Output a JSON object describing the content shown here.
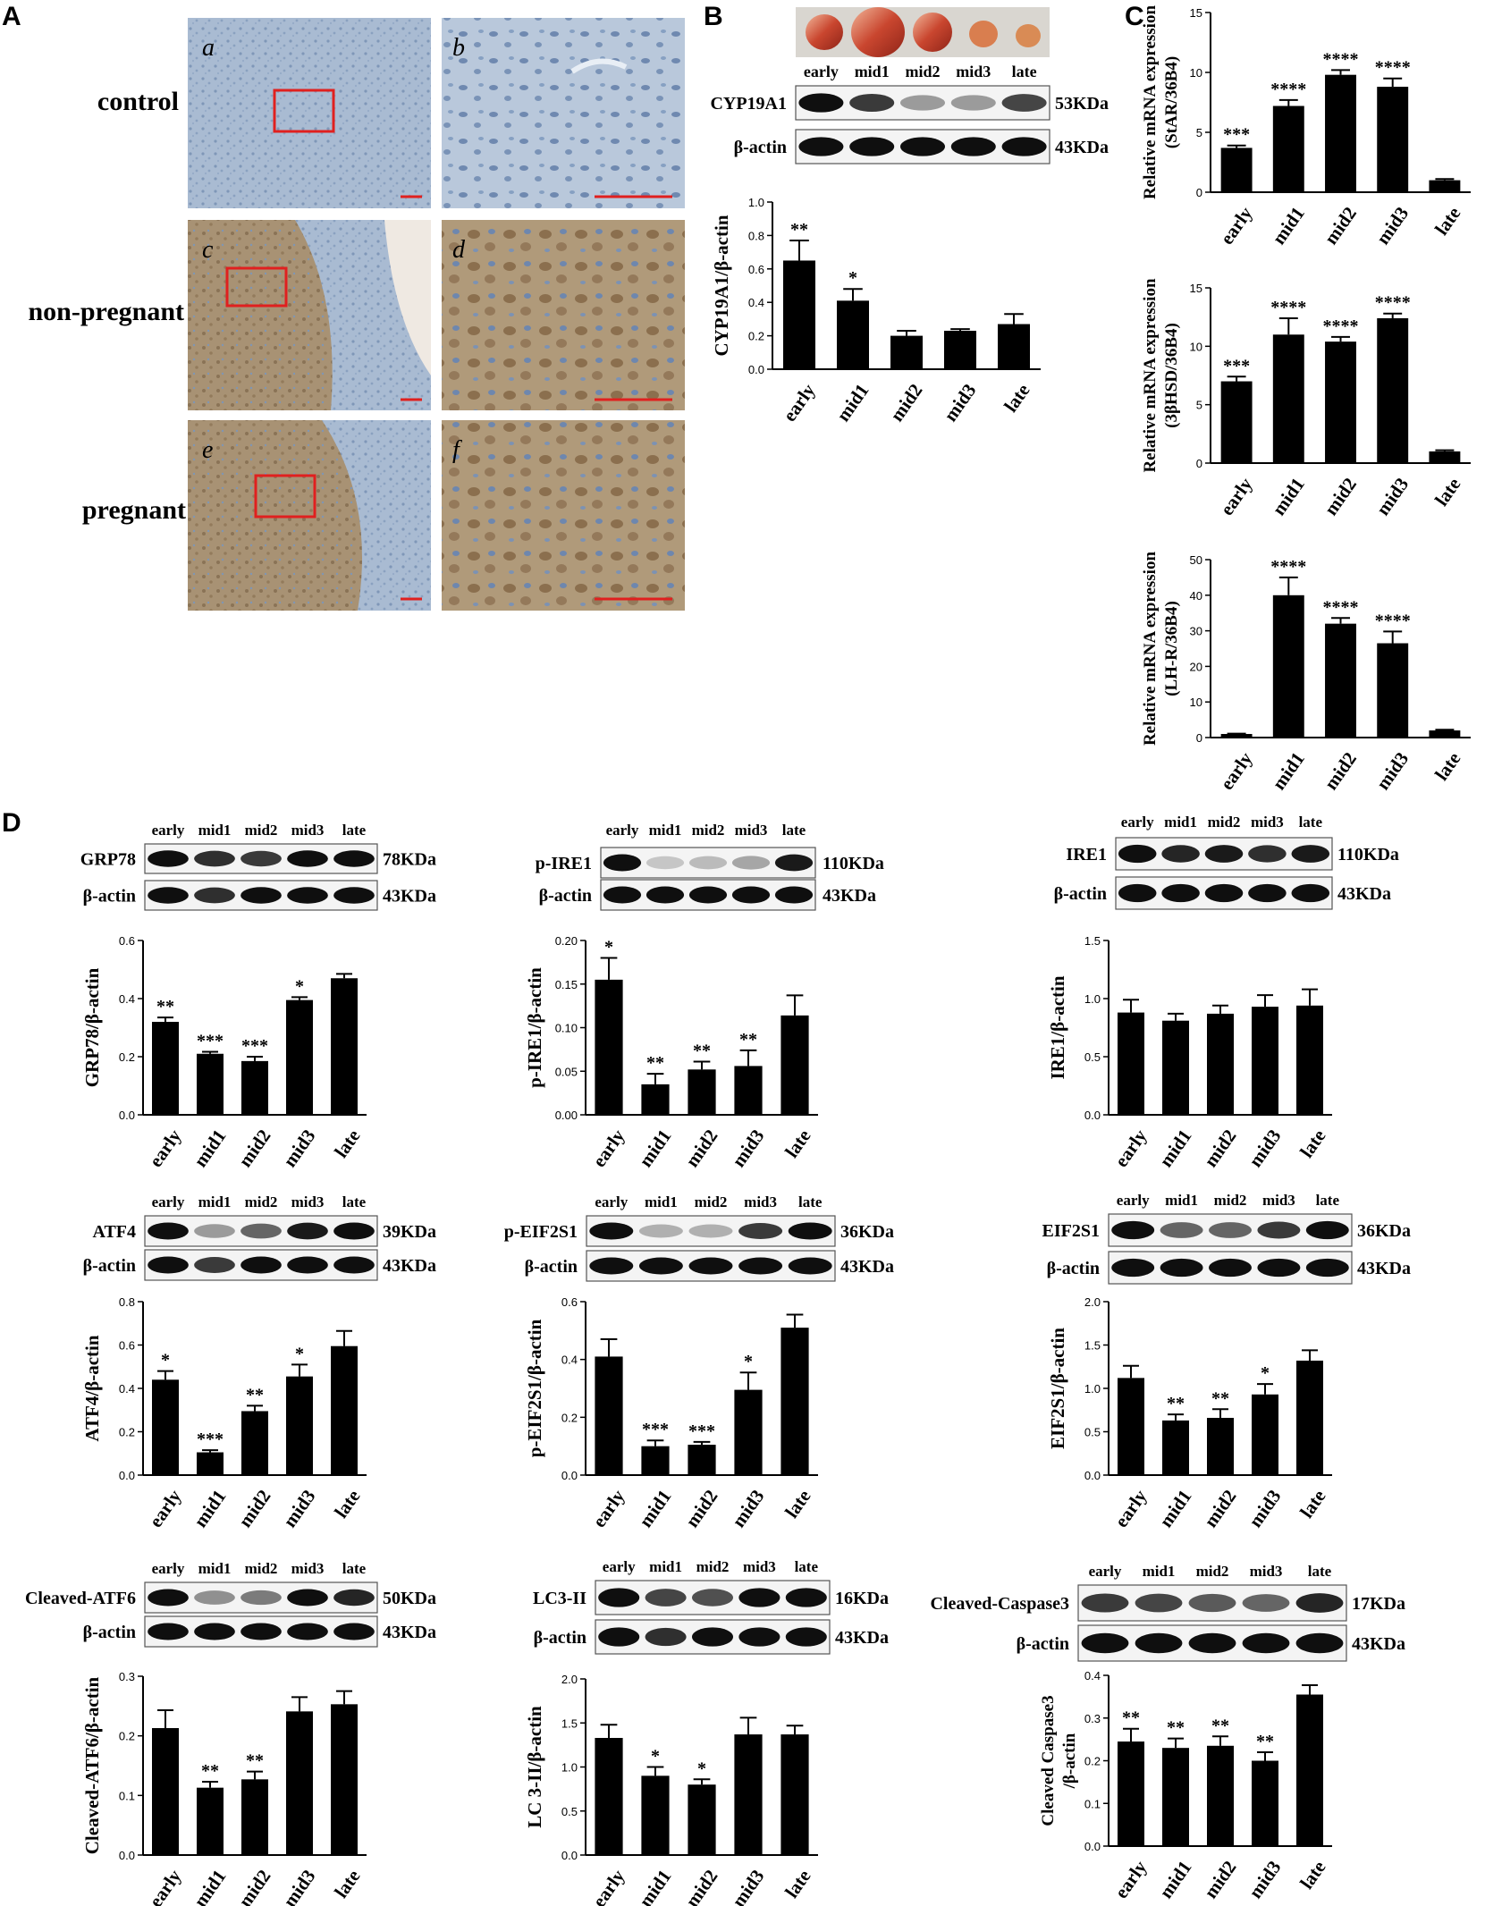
{
  "panels": {
    "A": "A",
    "B": "B",
    "C": "C",
    "D": "D"
  },
  "panelA": {
    "rows": [
      "control",
      "non-pregnant",
      "pregnant"
    ],
    "tiles": [
      "a",
      "b",
      "c",
      "d",
      "e",
      "f"
    ]
  },
  "colors": {
    "bar": "#000000",
    "box": "#e0201f",
    "stain_blue": "#9fb3cc",
    "stain_brown": "#a58e6c"
  },
  "blots": {
    "B": {
      "lanes": [
        "early",
        "mid1",
        "mid2",
        "mid3",
        "late"
      ],
      "rows": [
        {
          "name": "CYP19A1",
          "size": "53KDa"
        },
        {
          "name": "β-actin",
          "size": "43KDa"
        }
      ]
    },
    "D1": {
      "lanes": [
        "early",
        "mid1",
        "mid2",
        "mid3",
        "late"
      ],
      "rows": [
        {
          "name": "GRP78",
          "size": "78KDa"
        },
        {
          "name": "β-actin",
          "size": "43KDa"
        }
      ]
    },
    "D2": {
      "lanes": [
        "early",
        "mid1",
        "mid2",
        "mid3",
        "late"
      ],
      "rows": [
        {
          "name": "p-IRE1",
          "size": "110KDa"
        },
        {
          "name": "β-actin",
          "size": "43KDa"
        }
      ]
    },
    "D3": {
      "lanes": [
        "early",
        "mid1",
        "mid2",
        "mid3",
        "late"
      ],
      "rows": [
        {
          "name": "IRE1",
          "size": "110KDa"
        },
        {
          "name": "β-actin",
          "size": "43KDa"
        }
      ]
    },
    "D4": {
      "lanes": [
        "early",
        "mid1",
        "mid2",
        "mid3",
        "late"
      ],
      "rows": [
        {
          "name": "ATF4",
          "size": "39KDa"
        },
        {
          "name": "β-actin",
          "size": "43KDa"
        }
      ]
    },
    "D5": {
      "lanes": [
        "early",
        "mid1",
        "mid2",
        "mid3",
        "late"
      ],
      "rows": [
        {
          "name": "p-EIF2S1",
          "size": "36KDa"
        },
        {
          "name": "β-actin",
          "size": "43KDa"
        }
      ]
    },
    "D6": {
      "lanes": [
        "early",
        "mid1",
        "mid2",
        "mid3",
        "late"
      ],
      "rows": [
        {
          "name": "EIF2S1",
          "size": "36KDa"
        },
        {
          "name": "β-actin",
          "size": "43KDa"
        }
      ]
    },
    "D7": {
      "lanes": [
        "early",
        "mid1",
        "mid2",
        "mid3",
        "late"
      ],
      "rows": [
        {
          "name": "Cleaved-ATF6",
          "size": "50KDa"
        },
        {
          "name": "β-actin",
          "size": "43KDa"
        }
      ]
    },
    "D8": {
      "lanes": [
        "early",
        "mid1",
        "mid2",
        "mid3",
        "late"
      ],
      "rows": [
        {
          "name": "LC3-II",
          "size": "16KDa"
        },
        {
          "name": "β-actin",
          "size": "43KDa"
        }
      ]
    },
    "D9": {
      "lanes": [
        "early",
        "mid1",
        "mid2",
        "mid3",
        "late"
      ],
      "rows": [
        {
          "name": "Cleaved-Caspase3",
          "size": "17KDa"
        },
        {
          "name": "β-actin",
          "size": "43KDa"
        }
      ]
    }
  },
  "chart_data": [
    {
      "id": "B",
      "type": "bar",
      "ylabel": "CYP19A1/β-actin",
      "ylim": [
        0,
        1.0
      ],
      "ticks": [
        "0.0",
        "0.2",
        "0.4",
        "0.6",
        "0.8",
        "1.0"
      ],
      "categories": [
        "early",
        "mid1",
        "mid2",
        "mid3",
        "late"
      ],
      "values": [
        0.65,
        0.41,
        0.2,
        0.23,
        0.27
      ],
      "errors": [
        0.12,
        0.07,
        0.03,
        0.01,
        0.06
      ],
      "sig": [
        "**",
        "*",
        "",
        "",
        ""
      ]
    },
    {
      "id": "C1",
      "type": "bar",
      "ylabel": [
        "Relative mRNA expression",
        "(StAR/36B4)"
      ],
      "ylim": [
        0,
        15
      ],
      "ticks": [
        "0",
        "5",
        "10",
        "15"
      ],
      "categories": [
        "early",
        "mid1",
        "mid2",
        "mid3",
        "late"
      ],
      "values": [
        3.7,
        7.2,
        9.8,
        8.8,
        1.0
      ],
      "errors": [
        0.2,
        0.5,
        0.4,
        0.7,
        0.1
      ],
      "sig": [
        "***",
        "****",
        "****",
        "****",
        ""
      ]
    },
    {
      "id": "C2",
      "type": "bar",
      "ylabel": [
        "Relative mRNA expression",
        "(3βHSD/36B4)"
      ],
      "ylim": [
        0,
        15
      ],
      "ticks": [
        "0",
        "5",
        "10",
        "15"
      ],
      "categories": [
        "early",
        "mid1",
        "mid2",
        "mid3",
        "late"
      ],
      "values": [
        7.0,
        11.0,
        10.4,
        12.4,
        1.0
      ],
      "errors": [
        0.4,
        1.4,
        0.4,
        0.4,
        0.1
      ],
      "sig": [
        "***",
        "****",
        "****",
        "****",
        ""
      ]
    },
    {
      "id": "C3",
      "type": "bar",
      "ylabel": [
        "Relative mRNA expression",
        "(LH-R/36B4)"
      ],
      "ylim": [
        0,
        50
      ],
      "ticks": [
        "0",
        "10",
        "20",
        "30",
        "40",
        "50"
      ],
      "categories": [
        "early",
        "mid1",
        "mid2",
        "mid3",
        "late"
      ],
      "values": [
        1.0,
        40.0,
        32.0,
        26.5,
        2.0
      ],
      "errors": [
        0.1,
        5.0,
        1.6,
        3.3,
        0.2
      ],
      "sig": [
        "",
        "****",
        "****",
        "****",
        ""
      ]
    },
    {
      "id": "D1",
      "type": "bar",
      "ylabel": "GRP78/β-actin",
      "ylim": [
        0,
        0.6
      ],
      "ticks": [
        "0.0",
        "0.2",
        "0.4",
        "0.6"
      ],
      "categories": [
        "early",
        "mid1",
        "mid2",
        "mid3",
        "late"
      ],
      "values": [
        0.32,
        0.21,
        0.185,
        0.395,
        0.47
      ],
      "errors": [
        0.015,
        0.007,
        0.015,
        0.01,
        0.015
      ],
      "sig": [
        "**",
        "***",
        "***",
        "*",
        ""
      ]
    },
    {
      "id": "D2",
      "type": "bar",
      "ylabel": "p-IRE1/β-actin",
      "ylim": [
        0,
        0.2
      ],
      "ticks": [
        "0.00",
        "0.05",
        "0.10",
        "0.15",
        "0.20"
      ],
      "categories": [
        "early",
        "mid1",
        "mid2",
        "mid3",
        "late"
      ],
      "values": [
        0.155,
        0.035,
        0.052,
        0.056,
        0.114
      ],
      "errors": [
        0.025,
        0.012,
        0.009,
        0.018,
        0.023
      ],
      "sig": [
        "*",
        "**",
        "**",
        "**",
        ""
      ]
    },
    {
      "id": "D3",
      "type": "bar",
      "ylabel": "IRE1/β-actin",
      "ylim": [
        0,
        1.5
      ],
      "ticks": [
        "0.0",
        "0.5",
        "1.0",
        "1.5"
      ],
      "categories": [
        "early",
        "mid1",
        "mid2",
        "mid3",
        "late"
      ],
      "values": [
        0.88,
        0.81,
        0.87,
        0.93,
        0.94
      ],
      "errors": [
        0.11,
        0.06,
        0.07,
        0.1,
        0.14
      ],
      "sig": [
        "",
        "",
        "",
        "",
        ""
      ]
    },
    {
      "id": "D4",
      "type": "bar",
      "ylabel": "ATF4/β-actin",
      "ylim": [
        0,
        0.8
      ],
      "ticks": [
        "0.0",
        "0.2",
        "0.4",
        "0.6",
        "0.8"
      ],
      "categories": [
        "early",
        "mid1",
        "mid2",
        "mid3",
        "late"
      ],
      "values": [
        0.44,
        0.105,
        0.295,
        0.455,
        0.595
      ],
      "errors": [
        0.04,
        0.01,
        0.025,
        0.055,
        0.07
      ],
      "sig": [
        "*",
        "***",
        "**",
        "*",
        ""
      ]
    },
    {
      "id": "D5",
      "type": "bar",
      "ylabel": "p-EIF2S1/β-actin",
      "ylim": [
        0,
        0.6
      ],
      "ticks": [
        "0.0",
        "0.2",
        "0.4",
        "0.6"
      ],
      "categories": [
        "early",
        "mid1",
        "mid2",
        "mid3",
        "late"
      ],
      "values": [
        0.41,
        0.1,
        0.105,
        0.295,
        0.51
      ],
      "errors": [
        0.06,
        0.02,
        0.01,
        0.06,
        0.045
      ],
      "sig": [
        "",
        "***",
        "***",
        "*",
        ""
      ]
    },
    {
      "id": "D6",
      "type": "bar",
      "ylabel": "EIF2S1/β-actin",
      "ylim": [
        0,
        2.0
      ],
      "ticks": [
        "0.0",
        "0.5",
        "1.0",
        "1.5",
        "2.0"
      ],
      "categories": [
        "early",
        "mid1",
        "mid2",
        "mid3",
        "late"
      ],
      "values": [
        1.12,
        0.63,
        0.66,
        0.93,
        1.32
      ],
      "errors": [
        0.14,
        0.07,
        0.1,
        0.12,
        0.12
      ],
      "sig": [
        "",
        "**",
        "**",
        "*",
        ""
      ]
    },
    {
      "id": "D7",
      "type": "bar",
      "ylabel": "Cleaved-ATF6/β-actin",
      "ylim": [
        0,
        0.3
      ],
      "ticks": [
        "0.0",
        "0.1",
        "0.2",
        "0.3"
      ],
      "categories": [
        "early",
        "mid1",
        "mid2",
        "mid3",
        "late"
      ],
      "values": [
        0.213,
        0.113,
        0.127,
        0.241,
        0.253
      ],
      "errors": [
        0.03,
        0.01,
        0.013,
        0.024,
        0.022
      ],
      "sig": [
        "",
        "**",
        "**",
        "",
        ""
      ]
    },
    {
      "id": "D8",
      "type": "bar",
      "ylabel": "LC 3-II/β-actin",
      "ylim": [
        0,
        2.0
      ],
      "ticks": [
        "0.0",
        "0.5",
        "1.0",
        "1.5",
        "2.0"
      ],
      "categories": [
        "early",
        "mid1",
        "mid2",
        "mid3",
        "late"
      ],
      "values": [
        1.33,
        0.9,
        0.8,
        1.37,
        1.37
      ],
      "errors": [
        0.15,
        0.1,
        0.06,
        0.19,
        0.1
      ],
      "sig": [
        "",
        "*",
        "*",
        "",
        ""
      ]
    },
    {
      "id": "D9",
      "type": "bar",
      "ylabel": [
        "Cleaved Caspase3",
        "/β-actin"
      ],
      "ylim": [
        0,
        0.4
      ],
      "ticks": [
        "0.0",
        "0.1",
        "0.2",
        "0.3",
        "0.4"
      ],
      "categories": [
        "early",
        "mid1",
        "mid2",
        "mid3",
        "late"
      ],
      "values": [
        0.245,
        0.23,
        0.235,
        0.2,
        0.355
      ],
      "errors": [
        0.03,
        0.022,
        0.022,
        0.02,
        0.022
      ],
      "sig": [
        "**",
        "**",
        "**",
        "**",
        ""
      ]
    }
  ]
}
